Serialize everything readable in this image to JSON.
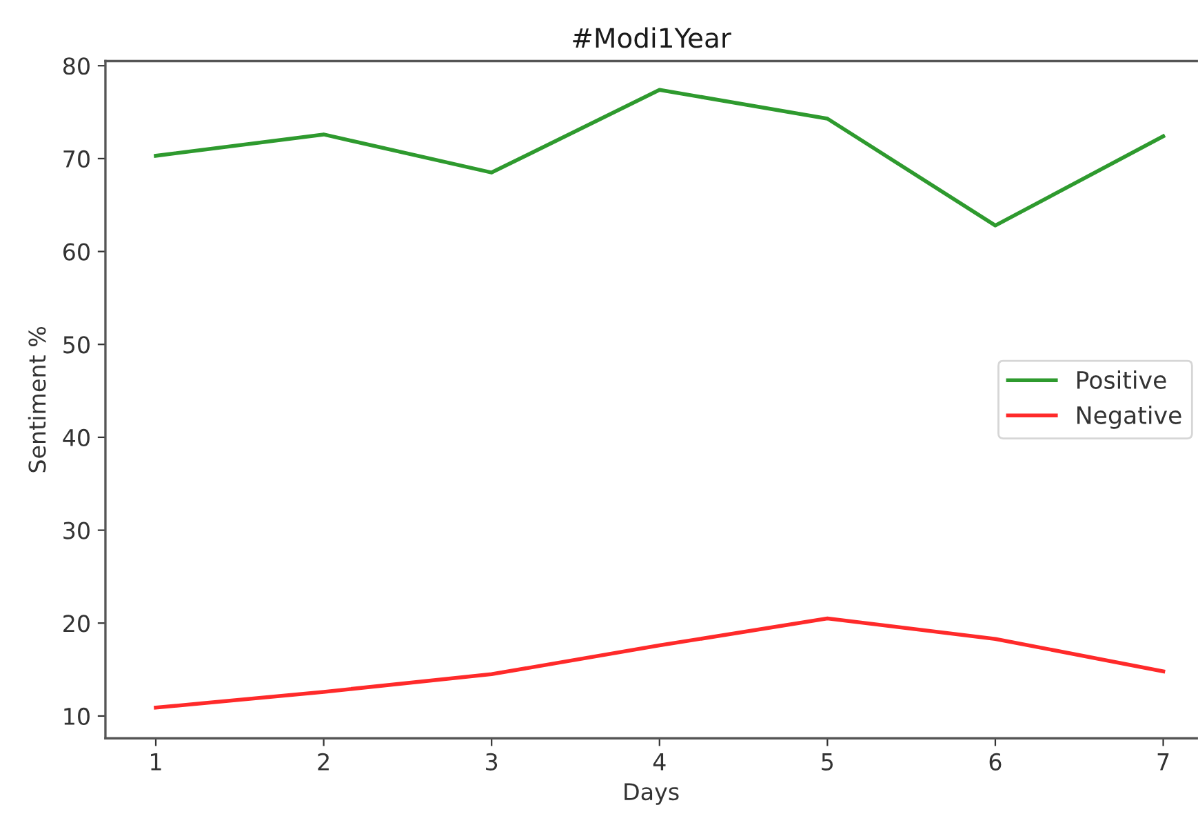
{
  "chart_data": {
    "type": "line",
    "title": "#Modi1Year",
    "xlabel": "Days",
    "ylabel": "Sentiment %",
    "x": [
      1,
      2,
      3,
      4,
      5,
      6,
      7
    ],
    "series": [
      {
        "name": "Positive",
        "color": "#2e9a2e",
        "values": [
          70.3,
          72.6,
          68.5,
          77.4,
          74.3,
          62.8,
          72.4
        ]
      },
      {
        "name": "Negative",
        "color": "#ff2a2a",
        "values": [
          10.9,
          12.6,
          14.5,
          17.6,
          20.5,
          18.3,
          14.8
        ]
      }
    ],
    "xlim": [
      0.7,
      7.2
    ],
    "ylim": [
      7.6,
      80.5
    ],
    "xticks": [
      1,
      2,
      3,
      4,
      5,
      6,
      7
    ],
    "yticks": [
      10,
      20,
      30,
      40,
      50,
      60,
      70,
      80
    ],
    "grid": false,
    "legend": "right",
    "marker": "none",
    "line_style": "solid"
  }
}
